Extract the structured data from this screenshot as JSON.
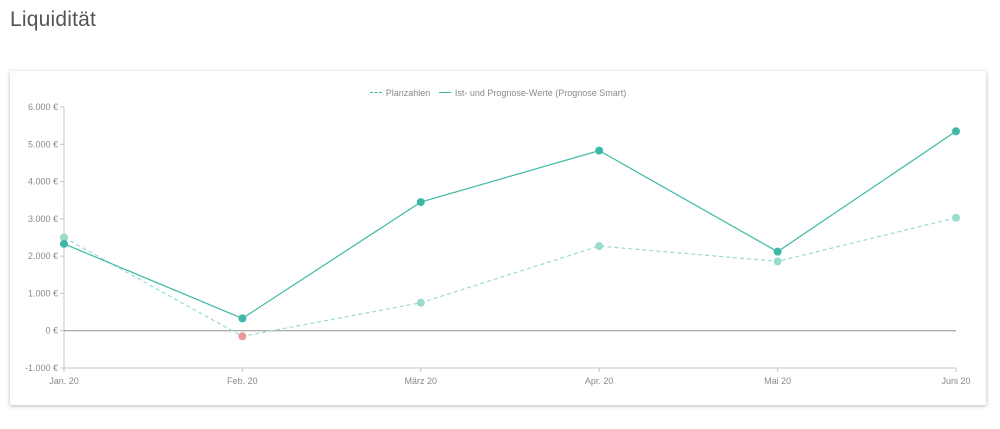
{
  "page": {
    "title": "Liquidität"
  },
  "chart_data": {
    "type": "line",
    "categories": [
      "Jan. 20",
      "Feb. 20",
      "März 20",
      "Apr. 20",
      "Mai 20",
      "Juni 20"
    ],
    "series": [
      {
        "name": "Planzahlen",
        "values": [
          2500,
          -150,
          750,
          2270,
          1860,
          3030
        ],
        "color": "#99dccd",
        "dashed": true,
        "negative_point_color": "#e99a98"
      },
      {
        "name": "Ist- und Prognose-Werte (Prognose Smart)",
        "values": [
          2330,
          330,
          3450,
          4830,
          2120,
          5350
        ],
        "color": "#3eb8a6",
        "dashed": false
      }
    ],
    "ylim": [
      -1000,
      6000
    ],
    "yticks": [
      -1000,
      0,
      1000,
      2000,
      3000,
      4000,
      5000,
      6000
    ],
    "ytick_labels": [
      "-1.000 €",
      "0 €",
      "1.000 €",
      "2.000 €",
      "3.000 €",
      "4.000 €",
      "5.000 €",
      "6.000 €"
    ],
    "xlabel": "",
    "ylabel": "",
    "grid": false,
    "legend_position": "top-center"
  }
}
